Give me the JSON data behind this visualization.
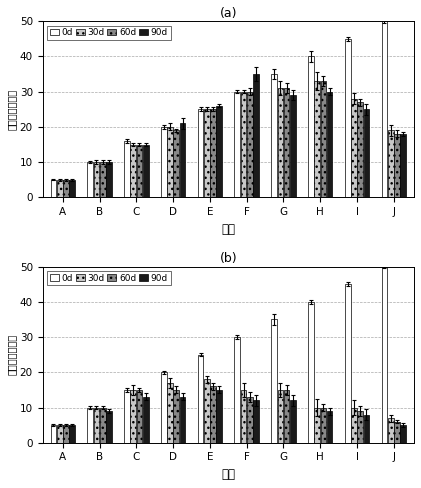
{
  "title_a": "(a)",
  "title_b": "(b)",
  "xlabel": "处理",
  "ylabel_a": "蚯蛙条数（条）",
  "ylabel_b": "蚯蛙条数（条）",
  "categories": [
    "A",
    "B",
    "C",
    "D",
    "E",
    "F",
    "G",
    "H",
    "I",
    "J"
  ],
  "legend_labels": [
    "0d",
    "30d",
    "60d",
    "90d"
  ],
  "ylim": [
    0,
    50
  ],
  "yticks": [
    0,
    10,
    20,
    30,
    40,
    50
  ],
  "chart_a": {
    "values": [
      [
        5,
        10,
        16,
        20,
        25,
        30,
        35,
        40,
        45,
        50
      ],
      [
        5,
        10,
        15,
        20,
        25,
        30,
        31,
        33,
        28,
        19
      ],
      [
        5,
        10,
        15,
        19,
        25,
        30,
        31,
        33,
        27,
        18
      ],
      [
        5,
        10,
        15,
        21,
        26,
        35,
        29,
        30,
        25,
        18
      ]
    ],
    "errors": [
      [
        0.2,
        0.3,
        0.5,
        0.5,
        0.5,
        0.5,
        1.5,
        1.5,
        0.5,
        0.5
      ],
      [
        0.3,
        0.5,
        0.5,
        1.0,
        0.5,
        0.5,
        2.0,
        2.5,
        1.5,
        1.5
      ],
      [
        0.3,
        0.5,
        0.5,
        0.5,
        0.5,
        1.0,
        1.5,
        1.5,
        1.0,
        1.0
      ],
      [
        0.3,
        0.5,
        0.5,
        1.5,
        0.5,
        2.0,
        1.5,
        1.0,
        1.5,
        0.5
      ]
    ]
  },
  "chart_b": {
    "values": [
      [
        5,
        10,
        15,
        20,
        25,
        30,
        35,
        40,
        45,
        50
      ],
      [
        5,
        10,
        15,
        17,
        18,
        15,
        15,
        10,
        10,
        7
      ],
      [
        5,
        10,
        15,
        15,
        16,
        13,
        15,
        10,
        9,
        6
      ],
      [
        5,
        9,
        13,
        13,
        15,
        12,
        12,
        9,
        8,
        5
      ]
    ],
    "errors": [
      [
        0.2,
        0.3,
        0.5,
        0.5,
        0.5,
        0.5,
        1.5,
        0.5,
        0.5,
        0.5
      ],
      [
        0.3,
        0.5,
        1.5,
        1.5,
        1.0,
        2.0,
        2.0,
        2.5,
        2.0,
        1.0
      ],
      [
        0.3,
        0.5,
        0.5,
        1.0,
        1.0,
        1.5,
        1.5,
        1.0,
        1.5,
        0.5
      ],
      [
        0.3,
        0.5,
        1.0,
        1.0,
        1.0,
        1.5,
        1.5,
        1.0,
        1.5,
        0.5
      ]
    ]
  }
}
